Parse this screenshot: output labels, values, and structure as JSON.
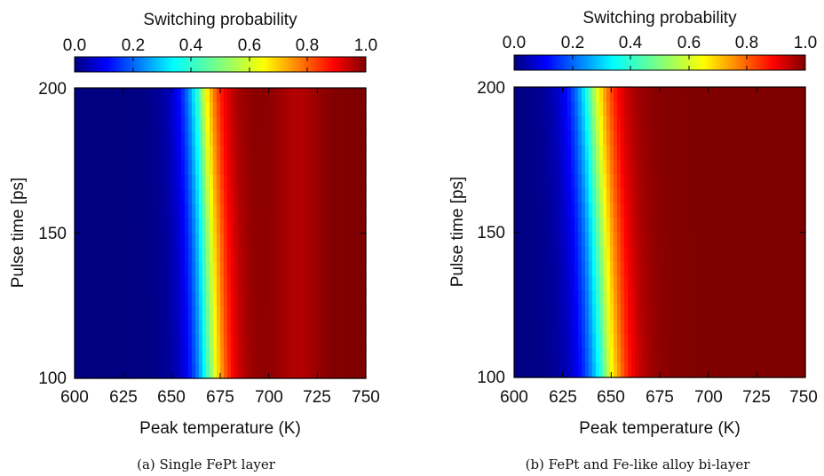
{
  "colorbar_label": "Switching probability",
  "colorbar_ticks": [
    "0.0",
    "0.2",
    "0.4",
    "0.6",
    "0.8",
    "1.0"
  ],
  "colormap": "jet",
  "chart_data": [
    {
      "type": "heatmap",
      "title": "",
      "caption": "(a) Single FePt layer",
      "xlabel": "Peak temperature (K)",
      "ylabel": "Pulse time [ps]",
      "xlim": [
        600,
        750
      ],
      "ylim": [
        100,
        200
      ],
      "xticks": [
        "600",
        "625",
        "650",
        "675",
        "700",
        "725",
        "750"
      ],
      "yticks": [
        "100",
        "150",
        "200"
      ],
      "zlim": [
        0,
        1
      ],
      "transition_midpoint_K": [
        {
          "pulse_ps": 100,
          "T_K": 670
        },
        {
          "pulse_ps": 150,
          "T_K": 668
        },
        {
          "pulse_ps": 200,
          "T_K": 665
        }
      ],
      "transition_width_K": 6,
      "saturation_dip_K": 715
    },
    {
      "type": "heatmap",
      "title": "",
      "caption": "(b) FePt and Fe-like alloy bi-layer",
      "xlabel": "Peak temperature (K)",
      "ylabel": "Pulse time [ps]",
      "xlim": [
        600,
        750
      ],
      "ylim": [
        100,
        200
      ],
      "xticks": [
        "600",
        "625",
        "650",
        "675",
        "700",
        "725",
        "750"
      ],
      "yticks": [
        "100",
        "150",
        "200"
      ],
      "zlim": [
        0,
        1
      ],
      "transition_midpoint_K": [
        {
          "pulse_ps": 100,
          "T_K": 647
        },
        {
          "pulse_ps": 150,
          "T_K": 644
        },
        {
          "pulse_ps": 200,
          "T_K": 640
        }
      ],
      "transition_width_K": 7,
      "saturation_dip_K": 0
    }
  ]
}
